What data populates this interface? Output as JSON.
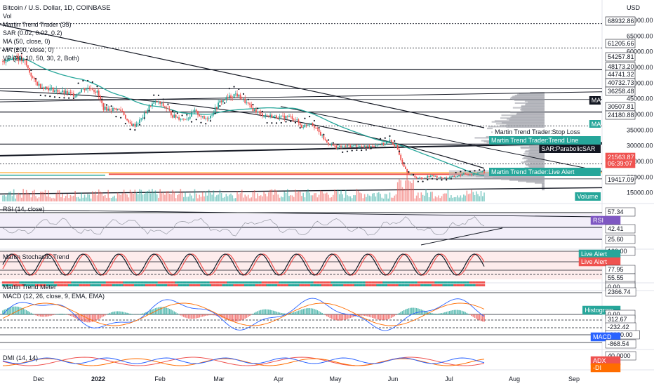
{
  "header": {
    "title": "Bitcoin / U.S. Dollar, 1D, COINBASE",
    "lines": [
      "Vol",
      "Martin Trend Trader (35)",
      "SAR (0.02, 0.02, 0.2)",
      "MA (50, close, 0)",
      "MA (200, close, 0)",
      "VP (20, 10, 50, 30, 2, Both)"
    ],
    "currency": "USD"
  },
  "chart_data": [
    {
      "type": "candlestick",
      "title": "Bitcoin / U.S. Dollar, 1D, COINBASE",
      "x": [
        "Dec",
        "Jan",
        "Feb",
        "Mar",
        "Apr",
        "May",
        "Jun",
        "Jul",
        "Aug",
        "Sep"
      ],
      "x_tick_labels": [
        "Dec",
        "2022",
        "Feb",
        "Mar",
        "Apr",
        "May",
        "Jun",
        "Jul",
        "Aug",
        "Sep"
      ],
      "y_ticks": [
        70000,
        65000,
        60000,
        55000,
        50000,
        45000,
        40000,
        35000,
        30000,
        25000,
        20000,
        15000
      ],
      "y_tick_labels": [
        "70000.00",
        "65000.00",
        "60000.00",
        "55000.00",
        "50000.00",
        "45000.00",
        "40000.00",
        "35000.00",
        "30000.00",
        "25000.00",
        "20000.00",
        "15000.00"
      ],
      "ylim": [
        12000,
        72000
      ],
      "close_path": [
        [
          0,
          57000
        ],
        [
          8,
          58500
        ],
        [
          14,
          56500
        ],
        [
          20,
          50500
        ],
        [
          24,
          49000
        ],
        [
          28,
          48500
        ],
        [
          34,
          47500
        ],
        [
          40,
          46800
        ],
        [
          46,
          46200
        ],
        [
          50,
          48000
        ],
        [
          56,
          48500
        ],
        [
          60,
          47000
        ],
        [
          64,
          42000
        ],
        [
          68,
          41500
        ],
        [
          72,
          41800
        ],
        [
          76,
          41000
        ],
        [
          80,
          37000
        ],
        [
          84,
          36500
        ],
        [
          88,
          38500
        ],
        [
          94,
          43000
        ],
        [
          98,
          44000
        ],
        [
          104,
          42000
        ],
        [
          108,
          39500
        ],
        [
          114,
          38500
        ],
        [
          118,
          39000
        ],
        [
          122,
          41000
        ],
        [
          128,
          38500
        ],
        [
          132,
          39500
        ],
        [
          138,
          44000
        ],
        [
          144,
          45500
        ],
        [
          148,
          46500
        ],
        [
          152,
          45000
        ],
        [
          158,
          42000
        ],
        [
          164,
          40000
        ],
        [
          170,
          39500
        ],
        [
          176,
          39000
        ],
        [
          182,
          39300
        ],
        [
          186,
          38500
        ],
        [
          190,
          36000
        ],
        [
          196,
          37500
        ],
        [
          202,
          33500
        ],
        [
          206,
          31000
        ],
        [
          212,
          29500
        ],
        [
          218,
          29800
        ],
        [
          224,
          30000
        ],
        [
          230,
          29600
        ],
        [
          236,
          30200
        ],
        [
          242,
          30500
        ],
        [
          246,
          31500
        ],
        [
          250,
          29700
        ],
        [
          254,
          24500
        ],
        [
          258,
          21000
        ],
        [
          262,
          20000
        ],
        [
          266,
          19500
        ],
        [
          272,
          20500
        ],
        [
          278,
          19800
        ],
        [
          282,
          19700
        ],
        [
          288,
          20200
        ],
        [
          294,
          21000
        ],
        [
          298,
          20800
        ],
        [
          302,
          21500
        ],
        [
          306,
          21560
        ]
      ],
      "horizontal_levels": [
        68932.86,
        61205.66,
        54257.81,
        48173.2,
        44741.32,
        40732.73,
        36258.48,
        30507.81,
        24180.88,
        19417.09
      ],
      "last_price": 21563.87,
      "countdown": "06:39:07",
      "grid": false
    },
    {
      "type": "line",
      "title": "RSI (14, close)",
      "levels": [
        57.34,
        42.41,
        25.6
      ],
      "ylim": [
        20,
        70
      ]
    },
    {
      "type": "line",
      "title": "Martin Stochastic Trend",
      "levels": [
        100,
        77.95,
        55.55
      ],
      "ylim": [
        0,
        110
      ]
    },
    {
      "type": "bar",
      "title": "Martin Trend Meter",
      "levels": [
        0
      ]
    },
    {
      "type": "bar",
      "title": "MACD (12, 26, close, 9, EMA, EMA)",
      "levels": [
        2366.74,
        312.67,
        -232.42,
        -868.54
      ],
      "y_tick_labels": [
        "0.00",
        "-2000.00"
      ]
    },
    {
      "type": "line",
      "title": "DMI (14, 14)",
      "y_tick_labels": [
        "40.0000"
      ]
    }
  ],
  "price_tags": [
    {
      "label": "68932.86",
      "bg": "#ffffff",
      "fg": "#131722",
      "border": "#131722"
    },
    {
      "label": "61205.66",
      "bg": "#ffffff",
      "fg": "#131722",
      "border": "#131722"
    },
    {
      "label": "54257.81",
      "bg": "#ffffff",
      "fg": "#131722",
      "border": "#131722"
    },
    {
      "label": "48173.20",
      "bg": "#ffffff",
      "fg": "#131722",
      "border": "#131722"
    },
    {
      "label": "44741.32",
      "bg": "#ffffff",
      "fg": "#131722",
      "border": "#131722"
    },
    {
      "label": "40732.73",
      "bg": "#ffffff",
      "fg": "#131722",
      "border": "#131722"
    },
    {
      "label": "36258.48",
      "bg": "#ffffff",
      "fg": "#131722",
      "border": "#131722"
    },
    {
      "label": "30507.81",
      "bg": "#ffffff",
      "fg": "#131722",
      "border": "#131722"
    },
    {
      "label": "24180.88",
      "bg": "#ffffff",
      "fg": "#131722",
      "border": "#131722"
    },
    {
      "label": "21563.87",
      "bg": "#ef5350",
      "fg": "#ffffff",
      "border": "#ef5350"
    },
    {
      "label": "06:39:07",
      "bg": "#ef5350",
      "fg": "#ffffff",
      "border": "#ef5350"
    },
    {
      "label": "19417.09",
      "bg": "#ffffff",
      "fg": "#131722",
      "border": "#131722"
    }
  ],
  "indicator_tags": [
    {
      "label": "MA",
      "bg": "#131722",
      "fg": "#ffffff"
    },
    {
      "label": "MA",
      "bg": "#26a69a",
      "fg": "#ffffff"
    },
    {
      "label": "Martin Trend Trader:Stop Loss",
      "bg": "#ffffff",
      "fg": "#131722"
    },
    {
      "label": "Martin Trend Trader:Trend Line",
      "bg": "#26a69a",
      "fg": "#ffffff"
    },
    {
      "label": "SAR:ParabolicSAR",
      "bg": "#131722",
      "fg": "#ffffff"
    },
    {
      "label": "Martin Trend Trader:Live Alert",
      "bg": "#26a69a",
      "fg": "#ffffff"
    },
    {
      "label": "Volume",
      "bg": "#26a69a",
      "fg": "#ffffff"
    }
  ],
  "rsi_tags": [
    {
      "label": "57.34",
      "bg": "#ffffff",
      "fg": "#131722"
    },
    {
      "label": "RSI",
      "bg": "#7e57c2",
      "fg": "#ffffff"
    },
    {
      "label": "42.41",
      "bg": "#ffffff",
      "fg": "#131722"
    },
    {
      "label": "25.60",
      "bg": "#ffffff",
      "fg": "#131722"
    }
  ],
  "stoch_tags": [
    {
      "label": "100.00",
      "bg": "#ffffff",
      "fg": "#131722"
    },
    {
      "label": "Live Alert",
      "bg": "#26a69a",
      "fg": "#ffffff"
    },
    {
      "label": "Live Alert",
      "bg": "#ef5350",
      "fg": "#ffffff"
    },
    {
      "label": "77.95",
      "bg": "#ffffff",
      "fg": "#131722"
    },
    {
      "label": "55.55",
      "bg": "#ffffff",
      "fg": "#131722"
    }
  ],
  "meter_tags": [
    {
      "label": "Plot",
      "bg": "#ffffff",
      "fg": "#131722"
    },
    {
      "label": "0.00",
      "bg": "#ffffff",
      "fg": "#131722"
    }
  ],
  "macd_tags": [
    {
      "label": "2366.74",
      "bg": "#ffffff",
      "fg": "#131722"
    },
    {
      "label": "Histogram",
      "bg": "#26a69a",
      "fg": "#ffffff"
    },
    {
      "label": "0.00",
      "bg": "#ffffff",
      "fg": "#131722"
    },
    {
      "label": "312.67",
      "bg": "#ffffff",
      "fg": "#131722"
    },
    {
      "label": "-232.42",
      "bg": "#ffffff",
      "fg": "#131722"
    },
    {
      "label": "-2000.00",
      "bg": "#ffffff",
      "fg": "#131722"
    },
    {
      "label": "MACD",
      "bg": "#2962ff",
      "fg": "#ffffff"
    },
    {
      "label": "-868.54",
      "bg": "#ffffff",
      "fg": "#131722"
    }
  ],
  "dmi_tags": [
    {
      "label": "40.0000",
      "bg": "#ffffff",
      "fg": "#131722"
    },
    {
      "label": "ADX",
      "bg": "#ef5350",
      "fg": "#ffffff"
    },
    {
      "label": "-DI",
      "bg": "#ff6d00",
      "fg": "#ffffff"
    }
  ],
  "pane_titles": {
    "rsi": "RSI (14, close)",
    "stoch": "Martin Stochastic Trend",
    "meter": "Martin Trend Meter",
    "macd": "MACD (12, 26, close, 9, EMA, EMA)",
    "dmi": "DMI (14, 14)"
  },
  "colors": {
    "up": "#26a69a",
    "down": "#ef5350",
    "ma50": "#26a69a",
    "profile": "#9598a1",
    "rsi": "#7e57c2",
    "rsi_band": "#ede7f6",
    "stoch_band": "#fde7e7",
    "macd": "#2962ff",
    "signal": "#ff6d00"
  }
}
